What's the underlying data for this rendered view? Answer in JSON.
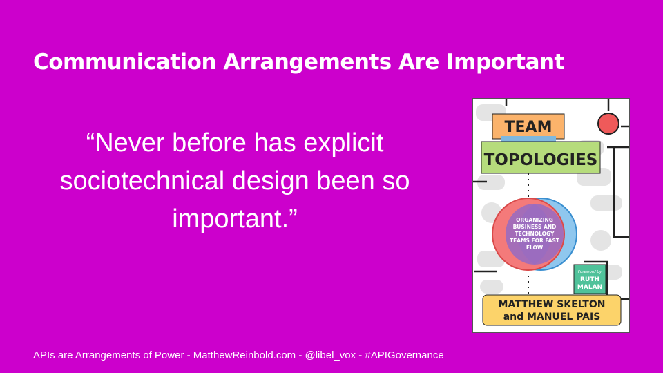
{
  "slide": {
    "title": "Communication Arrangements Are Important",
    "quote_lines": [
      "“Never before has explicit",
      "sociotechnical design been so",
      "important.”"
    ],
    "footer": "APIs are Arrangements of Power - MatthewReinbold.com - @libel_vox - #APIGovernance",
    "background_color": "#cc00cc"
  },
  "book_cover": {
    "title_line1": "TEAM",
    "title_line2": "TOPOLOGIES",
    "subtitle_lines": [
      "ORGANIZING",
      "BUSINESS AND",
      "TECHNOLOGY",
      "TEAMS FOR FAST",
      "FLOW"
    ],
    "foreword_label": "Foreword by",
    "foreword_name_lines": [
      "RUTH",
      "MALAN"
    ],
    "author_line1": "MATTHEW SKELTON",
    "author_line2": "and MANUEL PAIS"
  }
}
